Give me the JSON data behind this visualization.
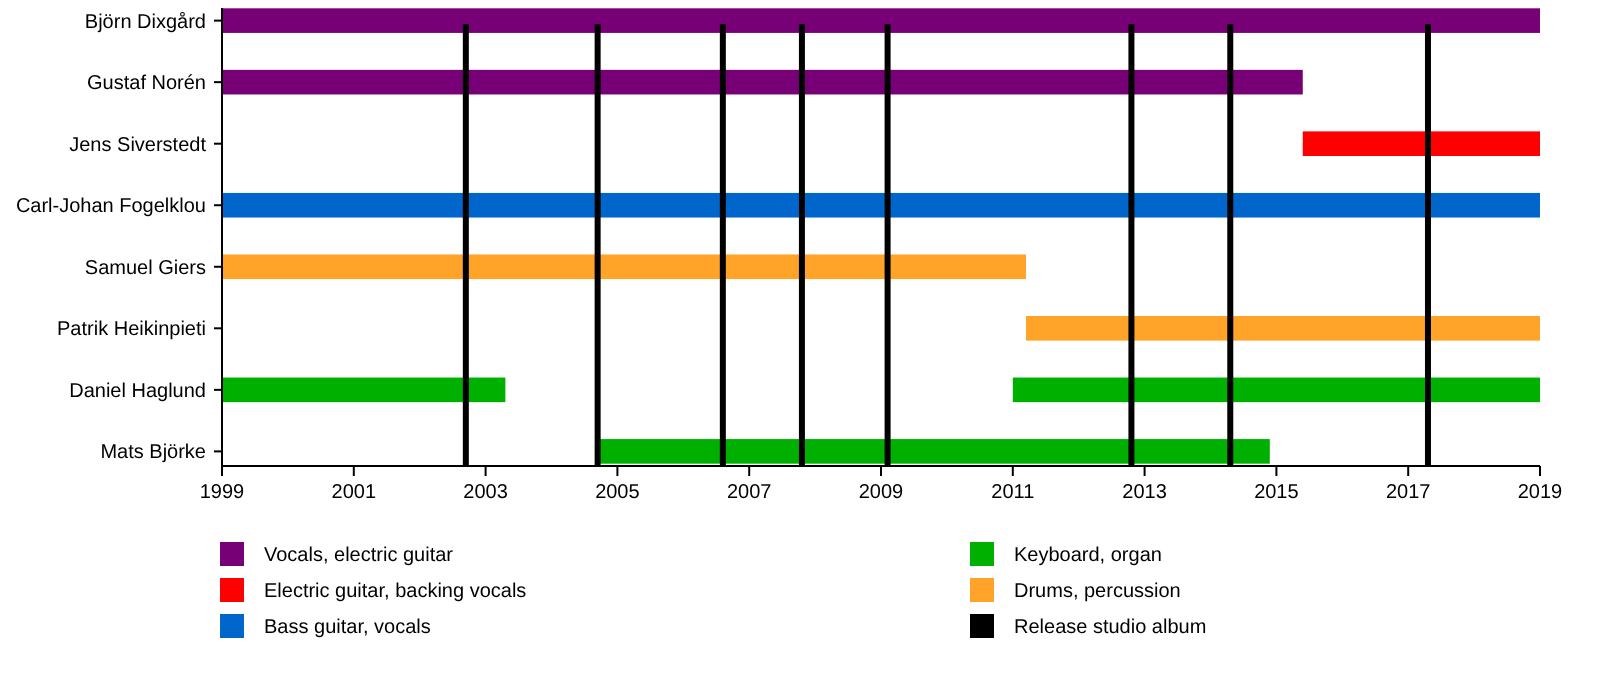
{
  "chart_data": {
    "type": "bar",
    "orientation": "horizontal",
    "categories": [
      "Björn Dixgård",
      "Gustaf Norén",
      "Jens Siverstedt",
      "Carl-Johan Fogelklou",
      "Samuel Giers",
      "Patrik Heikinpieti",
      "Daniel Haglund",
      "Mats Björke"
    ],
    "series": [
      {
        "name": "Vocals, electric guitar",
        "color": "#770077",
        "base": [
          1999,
          1999,
          null,
          null,
          null,
          null,
          null,
          null
        ],
        "values": [
          20,
          16.4,
          null,
          null,
          null,
          null,
          null,
          null
        ]
      },
      {
        "name": "Electric guitar, backing vocals",
        "color": "#ff0000",
        "base": [
          null,
          null,
          2015.4,
          null,
          null,
          null,
          null,
          null
        ],
        "values": [
          null,
          null,
          3.6,
          null,
          null,
          null,
          null,
          null
        ]
      },
      {
        "name": "Bass guitar, vocals",
        "color": "#0066cc",
        "base": [
          null,
          null,
          null,
          1999,
          null,
          null,
          null,
          null
        ],
        "values": [
          null,
          null,
          null,
          20,
          null,
          null,
          null,
          null
        ]
      },
      {
        "name": "Keyboard, organ",
        "color": "#00b000",
        "base": [
          null,
          null,
          null,
          null,
          null,
          null,
          1999,
          2004.7
        ],
        "values": [
          null,
          null,
          null,
          null,
          null,
          null,
          4.3,
          10.2
        ]
      },
      {
        "name": "Drums, percussion",
        "color": "#ffa329",
        "base": [
          null,
          null,
          null,
          null,
          1999,
          2011.2,
          null,
          null
        ],
        "values": [
          null,
          null,
          null,
          null,
          12.2,
          7.8,
          null,
          null
        ]
      },
      {
        "color": "#00b000",
        "base": [
          null,
          null,
          null,
          null,
          null,
          null,
          2011,
          null
        ],
        "values": [
          null,
          null,
          null,
          null,
          null,
          null,
          8,
          null
        ]
      }
    ],
    "xlim": [
      1999,
      2019
    ],
    "xticks": [
      1999,
      2001,
      2003,
      2005,
      2007,
      2009,
      2011,
      2013,
      2015,
      2017,
      2019
    ],
    "ref_lines": [
      {
        "axis": "x",
        "value": 2002.7,
        "label": "Release studio album",
        "color": "#000000"
      },
      {
        "axis": "x",
        "value": 2004.7,
        "color": "#000000"
      },
      {
        "axis": "x",
        "value": 2006.6,
        "color": "#000000"
      },
      {
        "axis": "x",
        "value": 2007.8,
        "color": "#000000"
      },
      {
        "axis": "x",
        "value": 2009.1,
        "color": "#000000"
      },
      {
        "axis": "x",
        "value": 2012.8,
        "color": "#000000"
      },
      {
        "axis": "x",
        "value": 2014.3,
        "color": "#000000"
      },
      {
        "axis": "x",
        "value": 2017.3,
        "color": "#000000"
      }
    ],
    "legend": "bottom"
  }
}
